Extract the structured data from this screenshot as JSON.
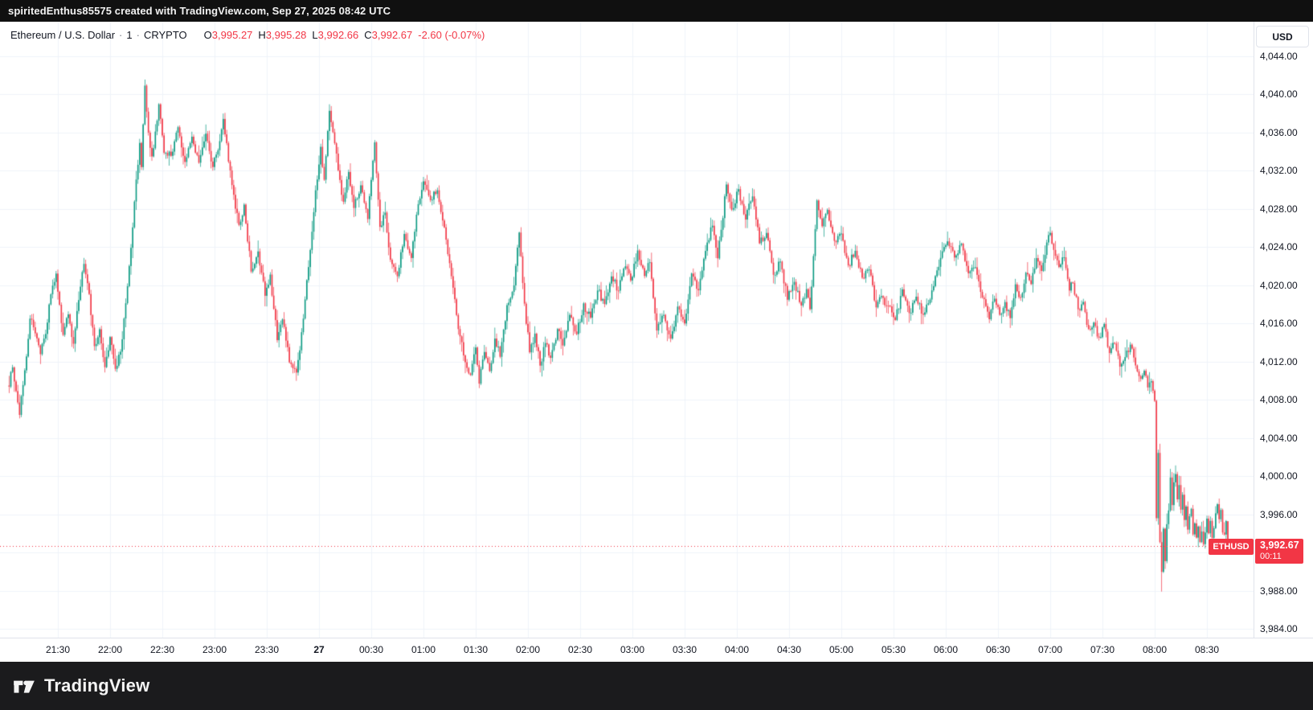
{
  "top_bar": {
    "attribution": "spiritedEnthus85575 created with TradingView.com, Sep 27, 2025 08:42 UTC"
  },
  "header": {
    "symbol_title": "Ethereum / U.S. Dollar",
    "separator": "·",
    "interval": "1",
    "exchange": "CRYPTO",
    "ohlc": {
      "o_label": "O",
      "o": "3,995.27",
      "h_label": "H",
      "h": "3,995.28",
      "l_label": "L",
      "l": "3,992.66",
      "c_label": "C",
      "c": "3,992.67",
      "change": "-2.60 (-0.07%)"
    }
  },
  "price_axis": {
    "currency_button": "USD",
    "ticks": [
      {
        "label": "4,044.00",
        "value": 4044
      },
      {
        "label": "4,040.00",
        "value": 4040
      },
      {
        "label": "4,036.00",
        "value": 4036
      },
      {
        "label": "4,032.00",
        "value": 4032
      },
      {
        "label": "4,028.00",
        "value": 4028
      },
      {
        "label": "4,024.00",
        "value": 4024
      },
      {
        "label": "4,020.00",
        "value": 4020
      },
      {
        "label": "4,016.00",
        "value": 4016
      },
      {
        "label": "4,012.00",
        "value": 4012
      },
      {
        "label": "4,008.00",
        "value": 4008
      },
      {
        "label": "4,004.00",
        "value": 4004
      },
      {
        "label": "4,000.00",
        "value": 4000
      },
      {
        "label": "3,996.00",
        "value": 3996
      },
      {
        "label": "3,988.00",
        "value": 3988
      },
      {
        "label": "3,984.00",
        "value": 3984
      }
    ],
    "grid_values": [
      4044,
      4040,
      4036,
      4032,
      4028,
      4024,
      4020,
      4016,
      4012,
      4008,
      4004,
      4000,
      3996,
      3992,
      3988,
      3984
    ]
  },
  "time_axis": {
    "ticks": [
      {
        "label": "21:30",
        "minutes": 30
      },
      {
        "label": "22:00",
        "minutes": 60
      },
      {
        "label": "22:30",
        "minutes": 90
      },
      {
        "label": "23:00",
        "minutes": 120
      },
      {
        "label": "23:30",
        "minutes": 150
      },
      {
        "label": "27",
        "minutes": 180,
        "bold": true
      },
      {
        "label": "00:30",
        "minutes": 210
      },
      {
        "label": "01:00",
        "minutes": 240
      },
      {
        "label": "01:30",
        "minutes": 270
      },
      {
        "label": "02:00",
        "minutes": 300
      },
      {
        "label": "02:30",
        "minutes": 330
      },
      {
        "label": "03:00",
        "minutes": 360
      },
      {
        "label": "03:30",
        "minutes": 390
      },
      {
        "label": "04:00",
        "minutes": 420
      },
      {
        "label": "04:30",
        "minutes": 450
      },
      {
        "label": "05:00",
        "minutes": 480
      },
      {
        "label": "05:30",
        "minutes": 510
      },
      {
        "label": "06:00",
        "minutes": 540
      },
      {
        "label": "06:30",
        "minutes": 570
      },
      {
        "label": "07:00",
        "minutes": 600
      },
      {
        "label": "07:30",
        "minutes": 630
      },
      {
        "label": "08:00",
        "minutes": 660
      },
      {
        "label": "08:30",
        "minutes": 690
      }
    ]
  },
  "price_label": {
    "symbol": "ETHUSD",
    "price": "3,992.67",
    "countdown": "00:11",
    "value": 3992.67
  },
  "footer": {
    "brand": "TradingView"
  },
  "chart_data": {
    "type": "candlestick",
    "symbol": "ETHUSD",
    "title": "Ethereum / U.S. Dollar, 1-minute, CRYPTO",
    "interval_minutes": 1,
    "session_start": "21:02",
    "session_end": "08:42",
    "price_axis_range": [
      3982,
      4046.5
    ],
    "visible_price_ticks_step": 4,
    "grid": true,
    "up_color": "#089981",
    "down_color": "#f23645",
    "last_candle": {
      "open": 3995.27,
      "high": 3995.28,
      "low": 3992.66,
      "close": 3992.67
    },
    "session_low": 3987.9,
    "session_high": 4041.3,
    "waypoints_unit": [
      "minutes_after_21:00_UTC",
      "price_usd"
    ],
    "waypoints": [
      [
        2,
        4009.5
      ],
      [
        4,
        4011.5
      ],
      [
        6,
        4009
      ],
      [
        8,
        4006.5
      ],
      [
        11,
        4011
      ],
      [
        14,
        4016.5
      ],
      [
        17,
        4015
      ],
      [
        20,
        4012.8
      ],
      [
        23,
        4015
      ],
      [
        26,
        4019
      ],
      [
        29,
        4021.3
      ],
      [
        31,
        4018
      ],
      [
        33,
        4014.8
      ],
      [
        36,
        4017
      ],
      [
        39,
        4013.8
      ],
      [
        42,
        4018.5
      ],
      [
        45,
        4022.3
      ],
      [
        48,
        4019
      ],
      [
        51,
        4013.5
      ],
      [
        54,
        4015.5
      ],
      [
        57,
        4011.5
      ],
      [
        60,
        4014.5
      ],
      [
        63,
        4011.2
      ],
      [
        66,
        4013
      ],
      [
        69,
        4018
      ],
      [
        72,
        4024
      ],
      [
        75,
        4031
      ],
      [
        77,
        4035
      ],
      [
        78,
        4032.5
      ],
      [
        80,
        4041
      ],
      [
        82,
        4036
      ],
      [
        84,
        4033.5
      ],
      [
        86,
        4036
      ],
      [
        88,
        4039
      ],
      [
        91,
        4034
      ],
      [
        95,
        4033.5
      ],
      [
        99,
        4036.5
      ],
      [
        103,
        4033
      ],
      [
        107,
        4035.5
      ],
      [
        111,
        4032.8
      ],
      [
        115,
        4035.8
      ],
      [
        119,
        4032.5
      ],
      [
        123,
        4035
      ],
      [
        125,
        4037.5
      ],
      [
        128,
        4033
      ],
      [
        131,
        4029.5
      ],
      [
        134,
        4026.3
      ],
      [
        137,
        4028.4
      ],
      [
        141,
        4021.5
      ],
      [
        145,
        4023.5
      ],
      [
        149,
        4019
      ],
      [
        152,
        4021
      ],
      [
        156,
        4014.3
      ],
      [
        159,
        4016.5
      ],
      [
        163,
        4012
      ],
      [
        167,
        4010.8
      ],
      [
        170,
        4015
      ],
      [
        174,
        4022
      ],
      [
        178,
        4030
      ],
      [
        181,
        4034.5
      ],
      [
        183,
        4031
      ],
      [
        186,
        4038.3
      ],
      [
        189,
        4035
      ],
      [
        192,
        4031
      ],
      [
        194,
        4028.8
      ],
      [
        197,
        4032
      ],
      [
        200,
        4028
      ],
      [
        204,
        4030.5
      ],
      [
        208,
        4027
      ],
      [
        212,
        4035
      ],
      [
        215,
        4026
      ],
      [
        218,
        4027.5
      ],
      [
        221,
        4022.8
      ],
      [
        225,
        4021
      ],
      [
        229,
        4025.5
      ],
      [
        233,
        4022.8
      ],
      [
        237,
        4028.5
      ],
      [
        240,
        4030.8
      ],
      [
        244,
        4029
      ],
      [
        248,
        4030
      ],
      [
        252,
        4026
      ],
      [
        256,
        4021
      ],
      [
        260,
        4015.5
      ],
      [
        264,
        4012
      ],
      [
        267,
        4010.5
      ],
      [
        270,
        4013.5
      ],
      [
        272,
        4009.8
      ],
      [
        275,
        4013
      ],
      [
        278,
        4011
      ],
      [
        281,
        4014.5
      ],
      [
        284,
        4012.5
      ],
      [
        288,
        4018
      ],
      [
        292,
        4020
      ],
      [
        295,
        4025.5
      ],
      [
        298,
        4018
      ],
      [
        301,
        4013
      ],
      [
        304,
        4015
      ],
      [
        307,
        4011.5
      ],
      [
        310,
        4014
      ],
      [
        313,
        4012.3
      ],
      [
        317,
        4015.5
      ],
      [
        320,
        4013.8
      ],
      [
        324,
        4016.8
      ],
      [
        328,
        4015
      ],
      [
        332,
        4018
      ],
      [
        336,
        4016.5
      ],
      [
        340,
        4019.5
      ],
      [
        344,
        4018
      ],
      [
        348,
        4021
      ],
      [
        352,
        4019.5
      ],
      [
        356,
        4022
      ],
      [
        359,
        4020.5
      ],
      [
        363,
        4023.7
      ],
      [
        367,
        4021
      ],
      [
        370,
        4022.5
      ],
      [
        374,
        4015.3
      ],
      [
        378,
        4017
      ],
      [
        382,
        4014.3
      ],
      [
        386,
        4017.8
      ],
      [
        390,
        4016
      ],
      [
        394,
        4021.2
      ],
      [
        398,
        4019.5
      ],
      [
        402,
        4023.7
      ],
      [
        406,
        4026.3
      ],
      [
        409,
        4022.9
      ],
      [
        414,
        4030.5
      ],
      [
        417,
        4028
      ],
      [
        421,
        4030
      ],
      [
        425,
        4027
      ],
      [
        429,
        4029.3
      ],
      [
        433,
        4024.5
      ],
      [
        437,
        4025.5
      ],
      [
        441,
        4021
      ],
      [
        445,
        4022.5
      ],
      [
        449,
        4018.6
      ],
      [
        453,
        4020.3
      ],
      [
        457,
        4017.8
      ],
      [
        460,
        4019.5
      ],
      [
        462,
        4017.4
      ],
      [
        464,
        4023
      ],
      [
        466,
        4029
      ],
      [
        469,
        4026.3
      ],
      [
        472,
        4028
      ],
      [
        476,
        4024.6
      ],
      [
        480,
        4025.5
      ],
      [
        484,
        4022
      ],
      [
        488,
        4023.7
      ],
      [
        492,
        4020.8
      ],
      [
        496,
        4021.6
      ],
      [
        500,
        4017.8
      ],
      [
        503,
        4018.8
      ],
      [
        507,
        4017.8
      ],
      [
        511,
        4016.3
      ],
      [
        515,
        4019.5
      ],
      [
        519,
        4017
      ],
      [
        523,
        4018.7
      ],
      [
        527,
        4017
      ],
      [
        531,
        4018.5
      ],
      [
        535,
        4021.5
      ],
      [
        538,
        4023.5
      ],
      [
        541,
        4024.6
      ],
      [
        545,
        4022.9
      ],
      [
        549,
        4024.4
      ],
      [
        553,
        4021.2
      ],
      [
        557,
        4022
      ],
      [
        561,
        4018.7
      ],
      [
        565,
        4016.5
      ],
      [
        568,
        4018.7
      ],
      [
        571,
        4016.8
      ],
      [
        574,
        4018.2
      ],
      [
        577,
        4016.6
      ],
      [
        580,
        4020
      ],
      [
        583,
        4018.7
      ],
      [
        586,
        4021.2
      ],
      [
        589,
        4020
      ],
      [
        592,
        4022.9
      ],
      [
        595,
        4021.6
      ],
      [
        598,
        4024.6
      ],
      [
        600,
        4025.5
      ],
      [
        602,
        4023.7
      ],
      [
        605,
        4022
      ],
      [
        608,
        4022.9
      ],
      [
        611,
        4019.5
      ],
      [
        613,
        4020.3
      ],
      [
        616,
        4017.4
      ],
      [
        619,
        4018.2
      ],
      [
        622,
        4015.3
      ],
      [
        625,
        4016.2
      ],
      [
        628,
        4014.4
      ],
      [
        631,
        4015.9
      ],
      [
        634,
        4012.8
      ],
      [
        637,
        4014
      ],
      [
        640,
        4011.5
      ],
      [
        643,
        4012.4
      ],
      [
        646,
        4013.8
      ],
      [
        649,
        4011.7
      ],
      [
        652,
        4010.3
      ],
      [
        654,
        4011.1
      ],
      [
        656,
        4009.4
      ],
      [
        658,
        4009.9
      ],
      [
        660,
        4008
      ],
      [
        661,
        3995.5
      ],
      [
        662,
        4002.5
      ],
      [
        663,
        3993
      ],
      [
        664,
        3990
      ],
      [
        665,
        3994.5
      ],
      [
        666,
        3991
      ],
      [
        667,
        3995
      ],
      [
        668,
        3996.5
      ],
      [
        669,
        3999.8
      ],
      [
        670,
        3997
      ],
      [
        671,
        3999.3
      ],
      [
        672,
        4000.3
      ],
      [
        673,
        3997.5
      ],
      [
        674,
        3999
      ],
      [
        675,
        3996.5
      ],
      [
        676,
        3998
      ],
      [
        677,
        3995.5
      ],
      [
        678,
        3996.8
      ],
      [
        679,
        3994.5
      ],
      [
        680,
        3995.8
      ],
      [
        681,
        3996.5
      ],
      [
        682,
        3994
      ],
      [
        683,
        3995
      ],
      [
        684,
        3993.5
      ],
      [
        685,
        3994.8
      ],
      [
        686,
        3993
      ],
      [
        687,
        3994.2
      ],
      [
        688,
        3992.8
      ],
      [
        689,
        3994
      ],
      [
        690,
        3995.5
      ],
      [
        691,
        3994
      ],
      [
        692,
        3995.2
      ],
      [
        693,
        3993.5
      ],
      [
        694,
        3994.5
      ],
      [
        695,
        3996.2
      ],
      [
        696,
        3997
      ],
      [
        697,
        3995.5
      ],
      [
        698,
        3996.5
      ],
      [
        699,
        3994.2
      ],
      [
        700,
        3993.8
      ],
      [
        701,
        3995.27
      ],
      [
        702,
        3992.67
      ]
    ]
  }
}
